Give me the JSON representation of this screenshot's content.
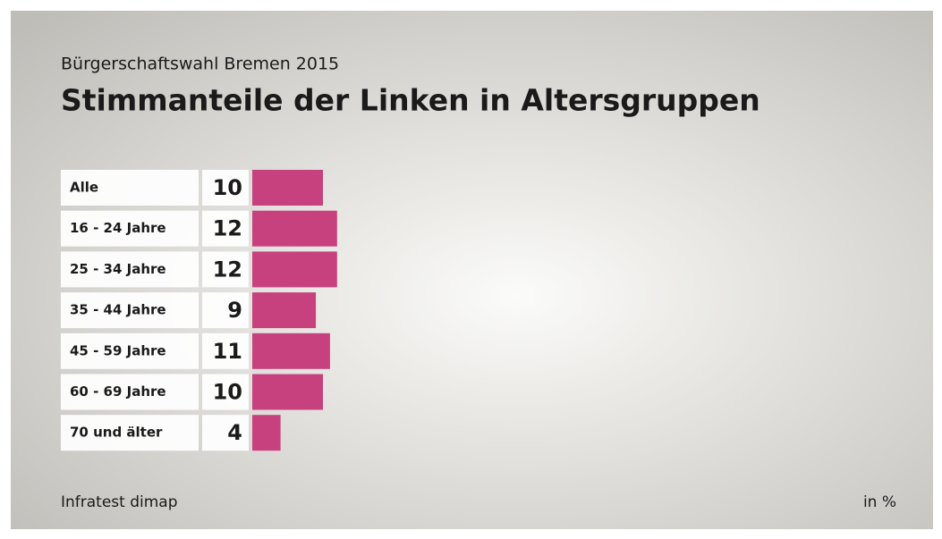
{
  "chart_data": {
    "type": "bar",
    "orientation": "horizontal",
    "subtitle": "Bürgerschaftswahl Bremen 2015",
    "title": "Stimmanteile der Linken in Altersgruppen",
    "categories": [
      "Alle",
      "16 - 24 Jahre",
      "25 - 34 Jahre",
      "35 - 44 Jahre",
      "45 - 59 Jahre",
      "60 - 69 Jahre",
      "70 und älter"
    ],
    "values": [
      10,
      12,
      12,
      9,
      11,
      10,
      4
    ],
    "color": "#c8417f",
    "source": "Infratest dimap",
    "unit": "in %"
  }
}
